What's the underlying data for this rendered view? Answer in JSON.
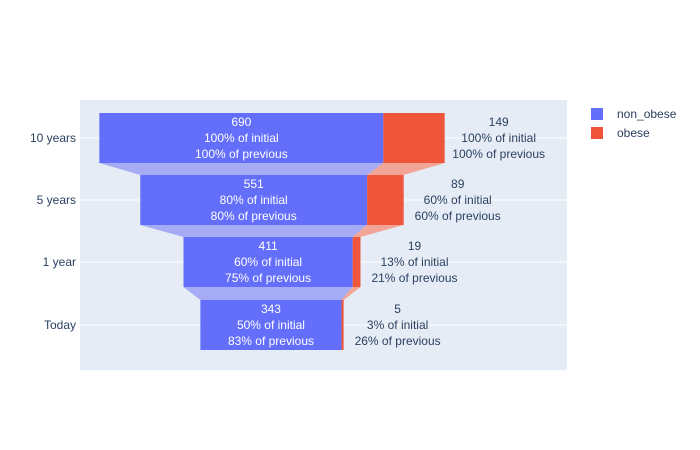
{
  "chart_data": {
    "type": "funnel",
    "categories": [
      "10 years",
      "5 years",
      "1 year",
      "Today"
    ],
    "series": [
      {
        "name": "non_obese",
        "color": "#636efa",
        "connector_color": "#a5abf5",
        "values": [
          690,
          551,
          411,
          343
        ],
        "labels": [
          [
            "690",
            "100% of initial",
            "100% of previous"
          ],
          [
            "551",
            "80% of initial",
            "80% of previous"
          ],
          [
            "411",
            "60% of initial",
            "75% of previous"
          ],
          [
            "343",
            "50% of initial",
            "83% of previous"
          ]
        ]
      },
      {
        "name": "obese",
        "color": "#ef553b",
        "connector_color": "#f2a596",
        "values": [
          149,
          89,
          19,
          5
        ],
        "labels": [
          [
            "149",
            "100% of initial",
            "100% of previous"
          ],
          [
            "89",
            "60% of initial",
            "60% of previous"
          ],
          [
            "19",
            "13% of initial",
            "21% of previous"
          ],
          [
            "5",
            "3% of initial",
            "26% of previous"
          ]
        ]
      }
    ],
    "legend_position": "top-right",
    "plot_background": "#e5ecf6",
    "grid": true
  }
}
